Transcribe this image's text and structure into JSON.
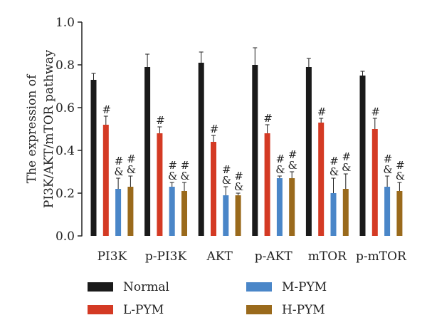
{
  "chart_data": {
    "type": "bar",
    "ylabel_lines": [
      "The expression of",
      "PI3K/AKT/mTOR pathway"
    ],
    "ylim": [
      0,
      1.0
    ],
    "yticks": [
      "0.0",
      "0.2",
      "0.4",
      "0.6",
      "0.8",
      "1.0"
    ],
    "categories": [
      "PI3K",
      "p-PI3K",
      "AKT",
      "p-AKT",
      "mTOR",
      "p-mTOR"
    ],
    "series": [
      {
        "name": "Normal",
        "color": "#1a1a1a",
        "values": [
          0.73,
          0.79,
          0.81,
          0.8,
          0.79,
          0.75
        ],
        "errors": [
          0.03,
          0.06,
          0.05,
          0.08,
          0.04,
          0.02
        ]
      },
      {
        "name": "L-PYM",
        "color": "#d43a24",
        "values": [
          0.52,
          0.48,
          0.44,
          0.48,
          0.53,
          0.5
        ],
        "errors": [
          0.04,
          0.03,
          0.03,
          0.04,
          0.02,
          0.05
        ]
      },
      {
        "name": "M-PYM",
        "color": "#4a86c8",
        "values": [
          0.22,
          0.23,
          0.19,
          0.27,
          0.2,
          0.23
        ],
        "errors": [
          0.05,
          0.02,
          0.04,
          0.01,
          0.07,
          0.05
        ]
      },
      {
        "name": "H-PYM",
        "color": "#9a6a1c",
        "values": [
          0.23,
          0.21,
          0.19,
          0.27,
          0.22,
          0.21
        ],
        "errors": [
          0.05,
          0.04,
          0.01,
          0.03,
          0.07,
          0.04
        ]
      }
    ],
    "annotations": [
      [
        [],
        [
          "#"
        ],
        [
          "#",
          "&"
        ],
        [
          "#",
          "&"
        ]
      ],
      [
        [],
        [
          "#"
        ],
        [
          "#",
          "&"
        ],
        [
          "#",
          "&"
        ]
      ],
      [
        [],
        [
          "#"
        ],
        [
          "#",
          "&"
        ],
        [
          "#",
          "&"
        ]
      ],
      [
        [],
        [
          "#"
        ],
        [
          "#",
          "&"
        ],
        [
          "#",
          "&"
        ]
      ],
      [
        [],
        [
          "#"
        ],
        [
          "#",
          "&"
        ],
        [
          "#",
          "&"
        ]
      ],
      [
        [],
        [
          "#"
        ],
        [
          "#",
          "&"
        ],
        [
          "#",
          "&"
        ]
      ]
    ],
    "legend_position": "bottom"
  }
}
